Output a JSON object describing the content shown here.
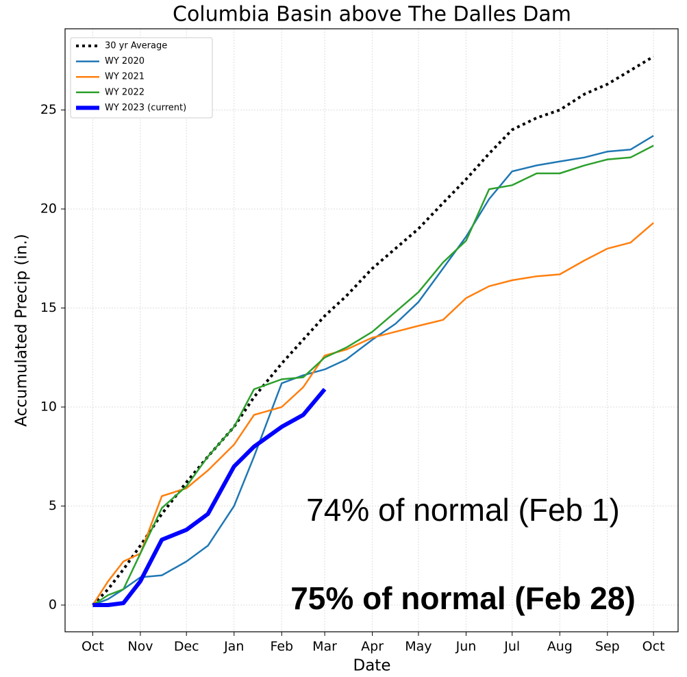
{
  "chart_data": {
    "type": "line",
    "title": "Columbia Basin above The Dalles Dam",
    "x_label": "Date",
    "y_label": "Accumulated Precip (in.)",
    "x": [
      0,
      10,
      20,
      31,
      45,
      61,
      75,
      92,
      105,
      123,
      137,
      151,
      165,
      182,
      197,
      212,
      228,
      243,
      258,
      273,
      289,
      304,
      320,
      335,
      350,
      365
    ],
    "xlim": [
      -18,
      381
    ],
    "xticks": [
      {
        "value": 0,
        "label": "Oct"
      },
      {
        "value": 31,
        "label": "Nov"
      },
      {
        "value": 61,
        "label": "Dec"
      },
      {
        "value": 92,
        "label": "Jan"
      },
      {
        "value": 123,
        "label": "Feb"
      },
      {
        "value": 151,
        "label": "Mar"
      },
      {
        "value": 182,
        "label": "Apr"
      },
      {
        "value": 212,
        "label": "May"
      },
      {
        "value": 243,
        "label": "Jun"
      },
      {
        "value": 273,
        "label": "Jul"
      },
      {
        "value": 304,
        "label": "Aug"
      },
      {
        "value": 335,
        "label": "Sep"
      },
      {
        "value": 365,
        "label": "Oct"
      }
    ],
    "ylim": [
      -1.35,
      29.1
    ],
    "yticks": [
      0,
      5,
      10,
      15,
      20,
      25
    ],
    "grid": true,
    "legend": "upper left",
    "series": [
      {
        "name": "30 yr Average",
        "color": "#000000",
        "style": "dotted",
        "width": 4,
        "values": [
          0,
          0.8,
          1.8,
          3.0,
          4.6,
          6.2,
          7.5,
          9.0,
          10.5,
          12.2,
          13.4,
          14.6,
          15.6,
          17.0,
          18.0,
          19.0,
          20.3,
          21.5,
          22.8,
          24.0,
          24.6,
          25.0,
          25.8,
          26.3,
          27.0,
          27.7
        ]
      },
      {
        "name": "WY 2020",
        "color": "#1f77b4",
        "style": "solid",
        "width": 2.5,
        "values": [
          0,
          0.3,
          0.8,
          1.4,
          1.5,
          2.2,
          3.0,
          5.0,
          7.5,
          11.2,
          11.6,
          11.9,
          12.4,
          13.4,
          14.2,
          15.3,
          17.0,
          18.6,
          20.5,
          21.9,
          22.2,
          22.4,
          22.6,
          22.9,
          23.0,
          23.7
        ]
      },
      {
        "name": "WY 2021",
        "color": "#ff7f0e",
        "style": "solid",
        "width": 2.5,
        "values": [
          0,
          1.2,
          2.2,
          2.6,
          5.5,
          5.9,
          6.8,
          8.1,
          9.6,
          10.0,
          11.0,
          12.6,
          12.9,
          13.5,
          13.8,
          14.1,
          14.4,
          15.5,
          16.1,
          16.4,
          16.6,
          16.7,
          17.4,
          18.0,
          18.3,
          19.3
        ]
      },
      {
        "name": "WY 2022",
        "color": "#2ca02c",
        "style": "solid",
        "width": 2.5,
        "values": [
          0,
          0.5,
          0.8,
          2.6,
          4.9,
          6.0,
          7.5,
          9.0,
          10.9,
          11.4,
          11.5,
          12.5,
          13.0,
          13.8,
          14.8,
          15.8,
          17.3,
          18.4,
          21.0,
          21.2,
          21.8,
          21.8,
          22.2,
          22.5,
          22.6,
          23.2
        ]
      },
      {
        "name": "WY 2023 (current)",
        "color": "#0000ff",
        "style": "solid",
        "width": 6,
        "values": [
          0,
          0,
          0.1,
          1.2,
          3.3,
          3.8,
          4.6,
          7.0,
          8.0,
          9.0,
          9.6,
          10.9,
          null,
          null,
          null,
          null,
          null,
          null,
          null,
          null,
          null,
          null,
          null,
          null,
          null,
          null
        ]
      }
    ],
    "annotations": [
      "74% of normal (Feb 1)",
      "75% of normal (Feb 28)"
    ]
  }
}
